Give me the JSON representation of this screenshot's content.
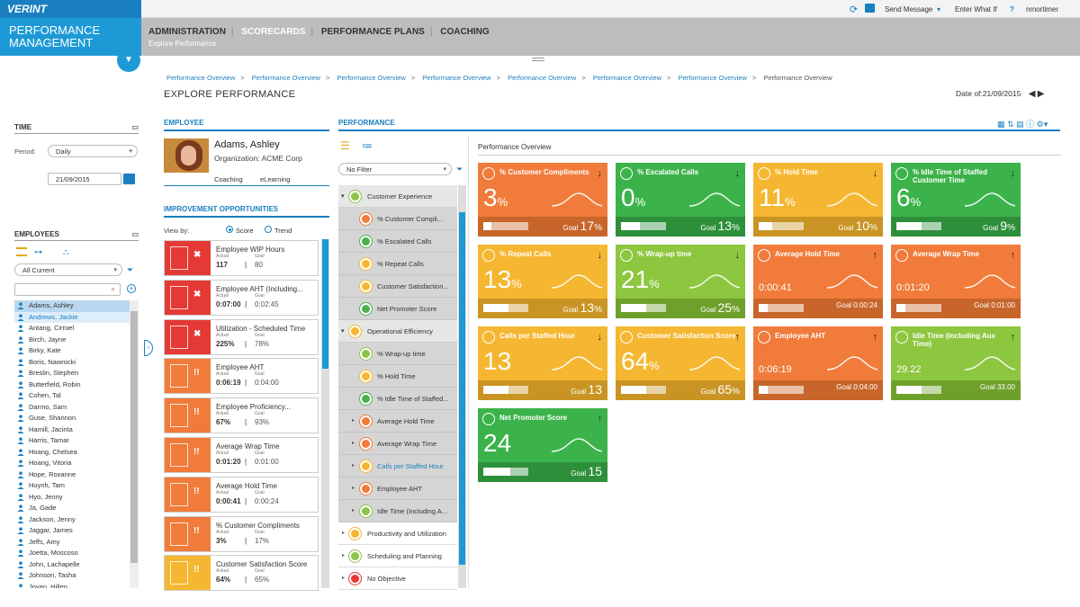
{
  "app": {
    "logo": "VERINT",
    "brand_line1": "PERFORMANCE",
    "brand_line2": "MANAGEMENT"
  },
  "topbar": {
    "send_message": "Send Message",
    "enter_what_if": "Enter What If",
    "help": "?",
    "user": "nmortimer"
  },
  "nav": {
    "tabs": [
      "ADMINISTRATION",
      "SCORECARDS",
      "PERFORMANCE PLANS",
      "COACHING"
    ],
    "subtitle": "Explore Performance"
  },
  "breadcrumbs": [
    "Performance Overview",
    "Performance Overview",
    "Performance Overview",
    "Performance Overview",
    "Performance Overview",
    "Performance Overview",
    "Performance Overview",
    "Performance Overview"
  ],
  "page": {
    "title": "EXPLORE PERFORMANCE",
    "date_label": "Date of:21/09/2015"
  },
  "time": {
    "header": "TIME",
    "period_label": "Period:",
    "period_value": "Daily",
    "date_value": "21/09/2015"
  },
  "employees": {
    "header": "EMPLOYEES",
    "filter_value": "All Current",
    "list": [
      "Adams, Ashley",
      "Andrews, Jackie",
      "Antang, Cirroel",
      "Birch, Jayne",
      "Birky, Kate",
      "Boris, Nawrocki",
      "Breslin, Stephen",
      "Butterfield, Robin",
      "Cohen, Tal",
      "Darmo, Sam",
      "Guse, Shannon",
      "Hamill, Jacinta",
      "Harris, Tamar",
      "Hoang, Chelsea",
      "Hoang, Vitoria",
      "Hope, Roxanne",
      "Huynh, Tam",
      "Hyo, Jenny",
      "Ja, Gade",
      "Jackson, Jenny",
      "Jaggar, James",
      "Jeffs, Amy",
      "Joetta, Moscoso",
      "John, Lachapelle",
      "Johnson, Tasha",
      "Jovan, Hillen"
    ]
  },
  "employee": {
    "header": "EMPLOYEE",
    "name": "Adams, Ashley",
    "organization": "Organization: ACME Corp",
    "tab_coaching": "Coaching",
    "tab_elearning": "eLearning"
  },
  "improvement": {
    "header": "IMPROVEMENT OPPORTUNITIES",
    "view_by": "View by:",
    "score": "Score",
    "trend": "Trend",
    "actual_label": "Actual",
    "goal_label": "Goal",
    "items": [
      {
        "name": "Employee WIP Hours",
        "actual": "117",
        "goal": "80",
        "color": "#e53935",
        "mark": "✖"
      },
      {
        "name": "Employee AHT (Including...",
        "actual": "0:07:00",
        "goal": "0:02:45",
        "color": "#e53935",
        "mark": "✖"
      },
      {
        "name": "Utilization - Scheduled Time",
        "actual": "225%",
        "goal": "78%",
        "color": "#e53935",
        "mark": "✖"
      },
      {
        "name": "Employee AHT",
        "actual": "0:06:19",
        "goal": "0:04:00",
        "color": "#f07b3a",
        "mark": "!!"
      },
      {
        "name": "Employee Proficiency...",
        "actual": "67%",
        "goal": "93%",
        "color": "#f07b3a",
        "mark": "!!"
      },
      {
        "name": "Average Wrap Time",
        "actual": "0:01:20",
        "goal": "0:01:00",
        "color": "#f07b3a",
        "mark": "!!"
      },
      {
        "name": "Average Hold Time",
        "actual": "0:00:41",
        "goal": "0:00:24",
        "color": "#f07b3a",
        "mark": "!!"
      },
      {
        "name": "% Customer Compliments",
        "actual": "3%",
        "goal": "17%",
        "color": "#f07b3a",
        "mark": "!!"
      },
      {
        "name": "Customer Satisfaction Score",
        "actual": "64%",
        "goal": "65%",
        "color": "#f5b731",
        "mark": "!!"
      }
    ]
  },
  "performance": {
    "header": "PERFORMANCE",
    "filter_value": "No Filter",
    "overview_title": "Performance Overview",
    "tree": [
      {
        "label": "Customer Experience",
        "level": 1,
        "color": "#8bc34a"
      },
      {
        "label": "% Customer Compli...",
        "level": 2,
        "color": "#f07b3a"
      },
      {
        "label": "% Escalated Calls",
        "level": 2,
        "color": "#4caf50"
      },
      {
        "label": "% Repeat Calls",
        "level": 2,
        "color": "#f5b731"
      },
      {
        "label": "Customer Satisfaction...",
        "level": 2,
        "color": "#f5b731"
      },
      {
        "label": "Net Promoter Score",
        "level": 2,
        "color": "#4caf50"
      },
      {
        "label": "Operational Efficiency",
        "level": 1,
        "color": "#f5b731"
      },
      {
        "label": "% Wrap-up time",
        "level": 2,
        "color": "#8bc34a"
      },
      {
        "label": "% Hold Time",
        "level": 2,
        "color": "#f5b731"
      },
      {
        "label": "% Idle Time of Staffed...",
        "level": 2,
        "color": "#4caf50"
      },
      {
        "label": "Average Hold Time",
        "level": 2,
        "color": "#f07b3a"
      },
      {
        "label": "Average Wrap Time",
        "level": 2,
        "color": "#f07b3a"
      },
      {
        "label": "Calls per Staffed Hour",
        "level": 2,
        "color": "#f5b731"
      },
      {
        "label": "Employee AHT",
        "level": 2,
        "color": "#f07b3a"
      },
      {
        "label": "Idle Time (Including A...",
        "level": 2,
        "color": "#8bc34a"
      },
      {
        "label": "Productivity and Utilization",
        "level": 0,
        "color": "#f5b731"
      },
      {
        "label": "Scheduling and Planning",
        "level": 0,
        "color": "#8bc34a"
      },
      {
        "label": "No Objective",
        "level": 0,
        "color": "#e53935"
      }
    ],
    "tiles": [
      {
        "title": "% Customer Compliments",
        "value": "3",
        "unit": "%",
        "goal_label": "Goal",
        "goal": "17",
        "goal_unit": "%",
        "progress": 0.18,
        "arrow": "↓",
        "color": "#f07b3a",
        "foot": "#c7652a"
      },
      {
        "title": "% Escalated Calls",
        "value": "0",
        "unit": "%",
        "goal_label": "Goal",
        "goal": "13",
        "goal_unit": "%",
        "progress": 0.42,
        "arrow": "↓",
        "color": "#3cb34a",
        "foot": "#2e8f3a"
      },
      {
        "title": "% Hold Time",
        "value": "11",
        "unit": "%",
        "goal_label": "Goal",
        "goal": "10",
        "goal_unit": "%",
        "progress": 0.3,
        "arrow": "↓",
        "color": "#f5b731",
        "foot": "#c99424"
      },
      {
        "title": "% Idle Time of Staffed Customer Time",
        "value": "6",
        "unit": "%",
        "goal_label": "Goal",
        "goal": "9",
        "goal_unit": "%",
        "progress": 0.55,
        "arrow": "↓",
        "color": "#3cb34a",
        "foot": "#2e8f3a"
      },
      {
        "title": "% Repeat Calls",
        "value": "13",
        "unit": "%",
        "goal_label": "Goal",
        "goal": "13",
        "goal_unit": "%",
        "progress": 0.55,
        "arrow": "↓",
        "color": "#f5b731",
        "foot": "#c99424"
      },
      {
        "title": "% Wrap-up time",
        "value": "21",
        "unit": "%",
        "goal_label": "Goal",
        "goal": "25",
        "goal_unit": "%",
        "progress": 0.55,
        "arrow": "↓",
        "color": "#8dc63f",
        "foot": "#6fa02c"
      },
      {
        "title": "Average Hold Time",
        "value": "0:00:41",
        "unit": "",
        "goal_label": "Goal",
        "goal": "0:00:24",
        "goal_unit": "",
        "progress": 0.2,
        "arrow": "↑",
        "color": "#f07b3a",
        "foot": "#c7652a"
      },
      {
        "title": "Average Wrap Time",
        "value": "0:01:20",
        "unit": "",
        "goal_label": "Goal",
        "goal": "0:01:00",
        "goal_unit": "",
        "progress": 0.2,
        "arrow": "↑",
        "color": "#f07b3a",
        "foot": "#c7652a"
      },
      {
        "title": "Calls per Staffed Hour",
        "value": "13",
        "unit": "",
        "goal_label": "Goal",
        "goal": "13",
        "goal_unit": "",
        "progress": 0.55,
        "arrow": "↓",
        "color": "#f5b731",
        "foot": "#c99424"
      },
      {
        "title": "Customer Satisfaction Score",
        "value": "64",
        "unit": "%",
        "goal_label": "Goal",
        "goal": "65",
        "goal_unit": "%",
        "progress": 0.55,
        "arrow": "↑",
        "color": "#f5b731",
        "foot": "#c99424"
      },
      {
        "title": "Employee AHT",
        "value": "0:06:19",
        "unit": "",
        "goal_label": "Goal",
        "goal": "0:04:00",
        "goal_unit": "",
        "progress": 0.2,
        "arrow": "↑",
        "color": "#f07b3a",
        "foot": "#c7652a"
      },
      {
        "title": "Idle Time (Including Aux Time)",
        "value": "29.22",
        "unit": "",
        "goal_label": "Goal",
        "goal": "33.00",
        "goal_unit": "",
        "progress": 0.55,
        "arrow": "↑",
        "color": "#8dc63f",
        "foot": "#6fa02c"
      },
      {
        "title": "Net Promoter Score",
        "value": "24",
        "unit": "",
        "goal_label": "Goal",
        "goal": "15",
        "goal_unit": "",
        "progress": 0.6,
        "arrow": "↑",
        "color": "#3cb34a",
        "foot": "#2e8f3a"
      }
    ]
  }
}
